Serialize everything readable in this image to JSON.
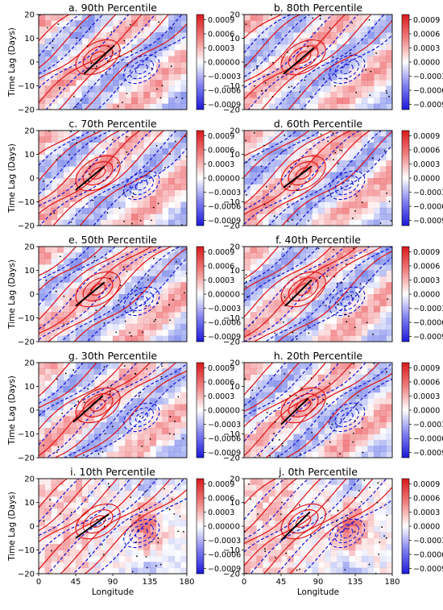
{
  "figure": {
    "ylabel": "Time Lag (Days)",
    "xlabel": "Longitude",
    "colorbar_ticks": [
      "0.0009",
      "0.0006",
      "0.0003",
      "0.0000",
      "−0.0003",
      "−0.0006",
      "−0.0009"
    ]
  },
  "colors": {
    "positive_fill": "#e8383d",
    "negative_fill": "#3d50e0",
    "positive_contour": "#e01010",
    "negative_contour": "#1010d8",
    "regression_line": "#000000"
  },
  "chart_data": [
    {
      "type": "heatmap",
      "title": "a. 90th Percentile",
      "xlim": [
        0,
        180
      ],
      "ylim": [
        -20,
        20
      ],
      "xticks": [],
      "yticks": [
        -20,
        -10,
        0,
        10,
        20
      ],
      "clim": [
        -0.0009,
        0.0009
      ],
      "line": {
        "x": [
          55,
          92
        ],
        "y": [
          -5,
          7
        ]
      },
      "xlabel": "",
      "ylabel": "Time Lag (Days)"
    },
    {
      "type": "heatmap",
      "title": "b. 80th Percentile",
      "xlim": [
        0,
        180
      ],
      "ylim": [
        -20,
        20
      ],
      "xticks": [],
      "yticks": [
        -20,
        -10,
        0,
        10,
        20
      ],
      "clim": [
        -0.0009,
        0.0009
      ],
      "line": {
        "x": [
          48,
          85
        ],
        "y": [
          -5,
          6
        ]
      },
      "xlabel": "",
      "ylabel": ""
    },
    {
      "type": "heatmap",
      "title": "c. 70th Percentile",
      "xlim": [
        0,
        180
      ],
      "ylim": [
        -20,
        20
      ],
      "xticks": [],
      "yticks": [
        -20,
        -10,
        0,
        10,
        20
      ],
      "clim": [
        -0.0009,
        0.0009
      ],
      "line": {
        "x": [
          45,
          80
        ],
        "y": [
          -5,
          5
        ]
      },
      "xlabel": "",
      "ylabel": "Time Lag (Days)"
    },
    {
      "type": "heatmap",
      "title": "d. 60th Percentile",
      "xlim": [
        0,
        180
      ],
      "ylim": [
        -20,
        20
      ],
      "xticks": [],
      "yticks": [
        -20,
        -10,
        0,
        10,
        20
      ],
      "clim": [
        -0.0009,
        0.0009
      ],
      "line": {
        "x": [
          48,
          82
        ],
        "y": [
          -4,
          5
        ]
      },
      "xlabel": "",
      "ylabel": ""
    },
    {
      "type": "heatmap",
      "title": "e. 50th Percentile",
      "xlim": [
        0,
        180
      ],
      "ylim": [
        -20,
        20
      ],
      "xticks": [],
      "yticks": [
        -20,
        -10,
        0,
        10,
        20
      ],
      "clim": [
        -0.0009,
        0.0009
      ],
      "line": {
        "x": [
          45,
          80
        ],
        "y": [
          -5,
          5
        ]
      },
      "xlabel": "",
      "ylabel": "Time Lag (Days)"
    },
    {
      "type": "heatmap",
      "title": "f. 40th Percentile",
      "xlim": [
        0,
        180
      ],
      "ylim": [
        -20,
        20
      ],
      "xticks": [],
      "yticks": [
        -20,
        -10,
        0,
        10,
        20
      ],
      "clim": [
        -0.0009,
        0.0009
      ],
      "line": {
        "x": [
          50,
          82
        ],
        "y": [
          -5,
          6
        ]
      },
      "xlabel": "",
      "ylabel": ""
    },
    {
      "type": "heatmap",
      "title": "g. 30th Percentile",
      "xlim": [
        0,
        180
      ],
      "ylim": [
        -20,
        20
      ],
      "xticks": [],
      "yticks": [
        -20,
        -10,
        0,
        10,
        20
      ],
      "clim": [
        -0.0009,
        0.0009
      ],
      "line": {
        "x": [
          42,
          78
        ],
        "y": [
          -5,
          6
        ]
      },
      "xlabel": "",
      "ylabel": "Time Lag (Days)"
    },
    {
      "type": "heatmap",
      "title": "h. 20th Percentile",
      "xlim": [
        0,
        180
      ],
      "ylim": [
        -20,
        20
      ],
      "xticks": [],
      "yticks": [
        -20,
        -10,
        0,
        10,
        20
      ],
      "clim": [
        -0.0009,
        0.0009
      ],
      "line": {
        "x": [
          45,
          78
        ],
        "y": [
          -6,
          5
        ]
      },
      "xlabel": "",
      "ylabel": ""
    },
    {
      "type": "heatmap",
      "title": "i. 10th Percentile",
      "xlim": [
        0,
        180
      ],
      "ylim": [
        -20,
        20
      ],
      "xticks": [
        0,
        45,
        90,
        135,
        180
      ],
      "yticks": [
        -20,
        -10,
        0,
        10,
        20
      ],
      "clim": [
        -0.0009,
        0.0009
      ],
      "line": {
        "x": [
          45,
          85
        ],
        "y": [
          -5,
          5
        ]
      },
      "xlabel": "Longitude",
      "ylabel": "Time Lag (Days)"
    },
    {
      "type": "heatmap",
      "title": "j. 0th Percentile",
      "xlim": [
        0,
        180
      ],
      "ylim": [
        -20,
        20
      ],
      "xticks": [
        0,
        45,
        90,
        135,
        180
      ],
      "yticks": [
        -20,
        -10,
        0,
        10,
        20
      ],
      "clim": [
        -0.0009,
        0.0009
      ],
      "line": {
        "x": [
          45,
          80
        ],
        "y": [
          -6,
          6
        ]
      },
      "xlabel": "Longitude",
      "ylabel": ""
    }
  ]
}
